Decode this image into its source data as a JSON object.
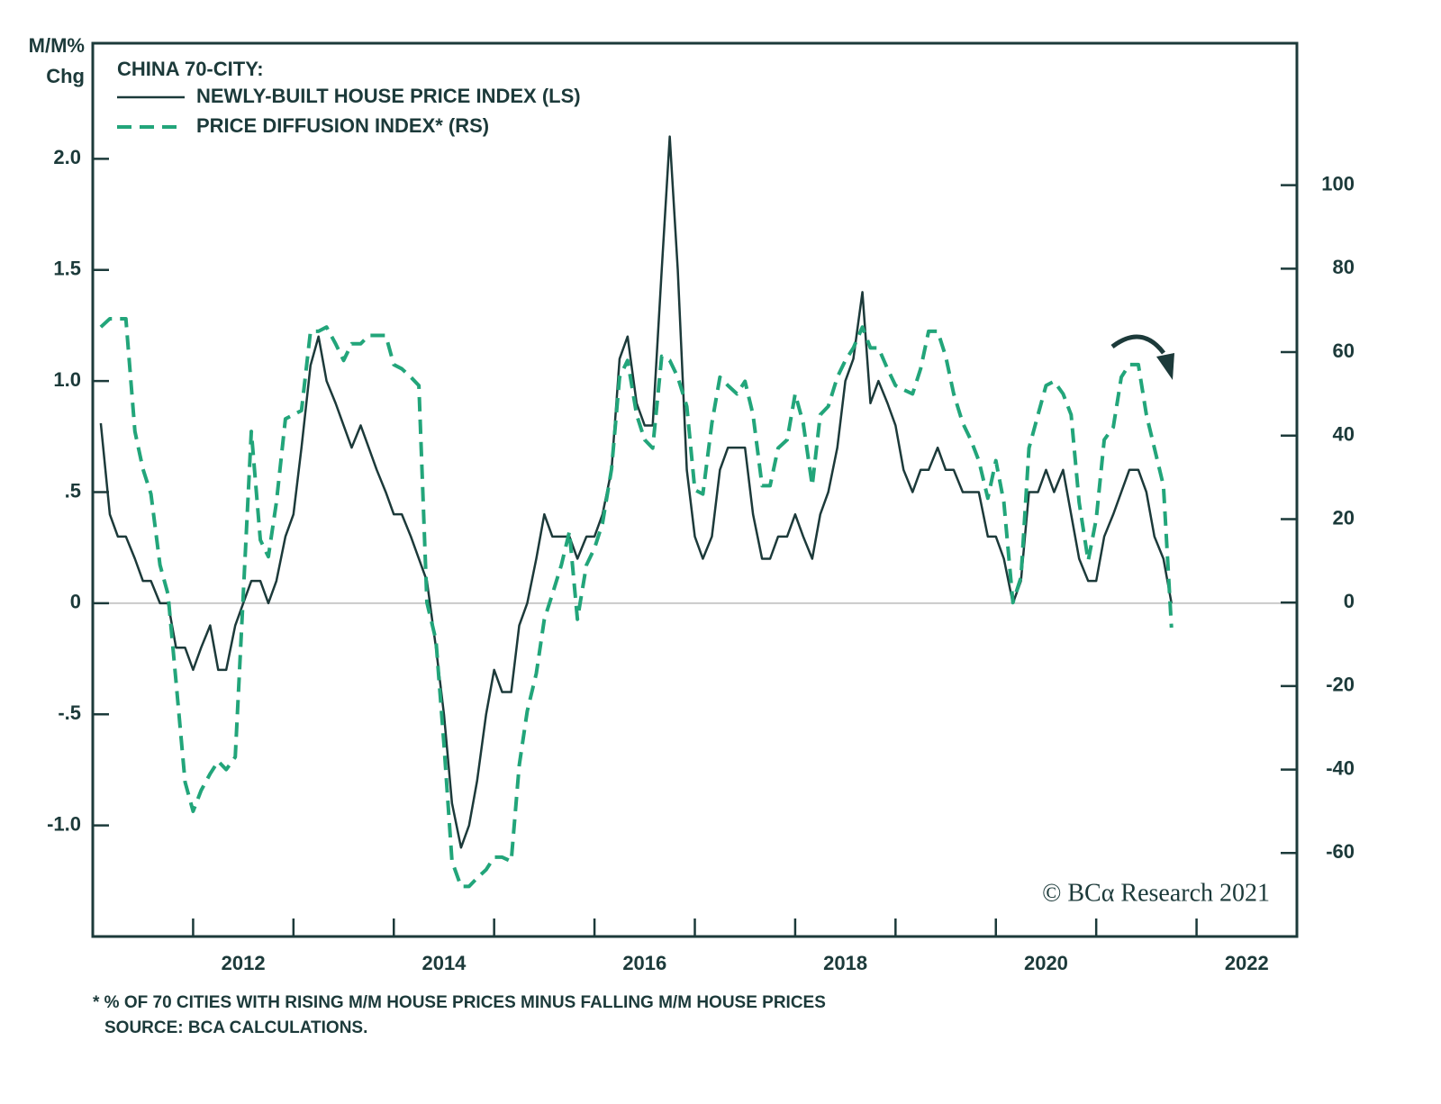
{
  "chart_data": {
    "type": "line",
    "legend_title": "CHINA 70-CITY:",
    "ylabel": [
      "M/M%",
      "Chg"
    ],
    "credit": "© BCα Research 2021",
    "footnotes": [
      "* % OF 70 CITIES WITH RISING M/M HOUSE PRICES MINUS FALLING M/M HOUSE PRICES",
      "SOURCE: BCA CALCULATIONS."
    ],
    "legend": "upper left",
    "zero_line": true,
    "xlim": [
      2011,
      2023
    ],
    "xtick_marks": [
      2012,
      2013,
      2014,
      2015,
      2016,
      2017,
      2018,
      2019,
      2020,
      2021,
      2022
    ],
    "xticks": [
      {
        "value": 2012.5,
        "label": "2012"
      },
      {
        "value": 2014.5,
        "label": "2014"
      },
      {
        "value": 2016.5,
        "label": "2016"
      },
      {
        "value": 2018.5,
        "label": "2018"
      },
      {
        "value": 2020.5,
        "label": "2020"
      },
      {
        "value": 2022.5,
        "label": "2022"
      }
    ],
    "ylim": [
      -1.5,
      2.52
    ],
    "yticks": [
      {
        "value": -1,
        "label": "-1.0"
      },
      {
        "value": -0.5,
        "label": "-.5"
      },
      0,
      {
        "value": 0.5,
        "label": ".5"
      },
      {
        "value": 1,
        "label": "1.0"
      },
      1.5,
      {
        "value": 2,
        "label": "2.0"
      }
    ],
    "y2lim": [
      -80,
      134
    ],
    "y2ticks": [
      -60,
      -40,
      -20,
      0,
      20,
      40,
      60,
      80,
      100
    ],
    "x": [
      2011.08,
      2011.17,
      2011.25,
      2011.33,
      2011.42,
      2011.5,
      2011.58,
      2011.67,
      2011.75,
      2011.83,
      2011.92,
      2012,
      2012.08,
      2012.17,
      2012.25,
      2012.33,
      2012.42,
      2012.5,
      2012.58,
      2012.67,
      2012.75,
      2012.83,
      2012.92,
      2013,
      2013.08,
      2013.17,
      2013.25,
      2013.33,
      2013.42,
      2013.5,
      2013.58,
      2013.67,
      2013.75,
      2013.83,
      2013.92,
      2014,
      2014.08,
      2014.17,
      2014.25,
      2014.33,
      2014.42,
      2014.5,
      2014.58,
      2014.67,
      2014.75,
      2014.83,
      2014.92,
      2015,
      2015.08,
      2015.17,
      2015.25,
      2015.33,
      2015.42,
      2015.5,
      2015.58,
      2015.67,
      2015.75,
      2015.83,
      2015.92,
      2016,
      2016.08,
      2016.17,
      2016.25,
      2016.33,
      2016.42,
      2016.5,
      2016.58,
      2016.67,
      2016.75,
      2016.83,
      2016.92,
      2017,
      2017.08,
      2017.17,
      2017.25,
      2017.33,
      2017.42,
      2017.5,
      2017.58,
      2017.67,
      2017.75,
      2017.83,
      2017.92,
      2018,
      2018.08,
      2018.17,
      2018.25,
      2018.33,
      2018.42,
      2018.5,
      2018.58,
      2018.67,
      2018.75,
      2018.83,
      2018.92,
      2019,
      2019.08,
      2019.17,
      2019.25,
      2019.33,
      2019.42,
      2019.5,
      2019.58,
      2019.67,
      2019.75,
      2019.83,
      2019.92,
      2020,
      2020.08,
      2020.17,
      2020.25,
      2020.33,
      2020.42,
      2020.5,
      2020.58,
      2020.67,
      2020.75,
      2020.83,
      2020.92,
      2021,
      2021.08,
      2021.17,
      2021.25,
      2021.33,
      2021.42,
      2021.5,
      2021.58,
      2021.67,
      2021.75
    ],
    "series": [
      {
        "name": "NEWLY-BUILT HOUSE PRICE INDEX (LS)",
        "color": "#1c3a3a",
        "dash": false,
        "values": [
          0.81,
          0.4,
          0.3,
          0.3,
          0.2,
          0.1,
          0.1,
          0,
          0,
          -0.2,
          -0.2,
          -0.3,
          -0.2,
          -0.1,
          -0.3,
          -0.3,
          -0.1,
          0,
          0.1,
          0.1,
          0,
          0.1,
          0.3,
          0.4,
          0.7,
          1.07,
          1.2,
          1.0,
          0.9,
          0.8,
          0.7,
          0.8,
          0.7,
          0.6,
          0.5,
          0.4,
          0.4,
          0.3,
          0.2,
          0.1,
          -0.2,
          -0.5,
          -0.9,
          -1.1,
          -1.0,
          -0.8,
          -0.5,
          -0.3,
          -0.4,
          -0.4,
          -0.1,
          0,
          0.2,
          0.4,
          0.3,
          0.3,
          0.3,
          0.2,
          0.3,
          0.3,
          0.4,
          0.6,
          1.1,
          1.2,
          0.9,
          0.8,
          0.8,
          1.5,
          2.1,
          1.5,
          0.6,
          0.3,
          0.2,
          0.3,
          0.6,
          0.7,
          0.7,
          0.7,
          0.4,
          0.2,
          0.2,
          0.3,
          0.3,
          0.4,
          0.3,
          0.2,
          0.4,
          0.5,
          0.7,
          1.0,
          1.1,
          1.4,
          0.9,
          1.0,
          0.9,
          0.8,
          0.6,
          0.5,
          0.6,
          0.6,
          0.7,
          0.6,
          0.6,
          0.5,
          0.5,
          0.5,
          0.3,
          0.3,
          0.2,
          0,
          0.1,
          0.5,
          0.5,
          0.6,
          0.5,
          0.6,
          0.4,
          0.2,
          0.1,
          0.1,
          0.3,
          0.4,
          0.5,
          0.6,
          0.6,
          0.5,
          0.3,
          0.2,
          0
        ]
      },
      {
        "name": "PRICE DIFFUSION INDEX* (RS)",
        "color": "#22a57a",
        "dash": true,
        "axis": "y2",
        "values": [
          66,
          68,
          68,
          68,
          41,
          32,
          26,
          9,
          2,
          -19,
          -43,
          -50,
          -45,
          -41,
          -38,
          -40,
          -37,
          2,
          41,
          15,
          11,
          24,
          44,
          45,
          46,
          65,
          65,
          66,
          62,
          58,
          62,
          62,
          64,
          64,
          64,
          57,
          56,
          54,
          52,
          0,
          -9,
          -34,
          -62,
          -68,
          -68,
          -66,
          -64,
          -61,
          -61,
          -62,
          -39,
          -26,
          -17,
          -4,
          2,
          9,
          17,
          -4,
          9,
          13,
          19,
          32,
          54,
          58,
          45,
          39,
          37,
          59,
          58,
          54,
          47,
          27,
          26,
          43,
          54,
          52,
          50,
          53,
          45,
          28,
          28,
          37,
          39,
          50,
          43,
          28,
          45,
          47,
          54,
          58,
          61,
          66,
          61,
          61,
          56,
          52,
          51,
          50,
          56,
          65,
          65,
          59,
          50,
          43,
          39,
          34,
          25,
          34,
          24,
          0,
          6,
          37,
          45,
          52,
          53,
          50,
          45,
          24,
          10,
          20,
          39,
          42,
          54,
          57,
          57,
          45,
          37,
          28,
          -6
        ]
      }
    ]
  }
}
